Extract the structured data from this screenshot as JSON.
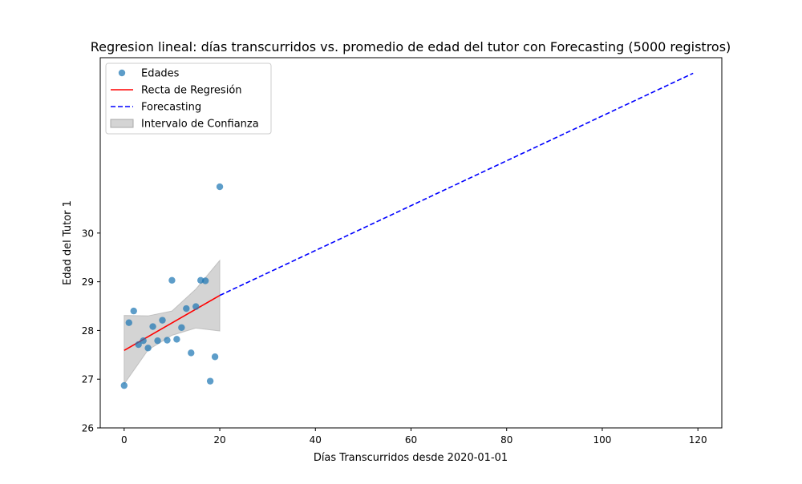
{
  "chart_data": {
    "type": "scatter",
    "title": "Regresion lineal: días transcurridos vs. promedio de edad del tutor con Forecasting (5000 registros)",
    "xlabel": "Días Transcurridos desde 2020-01-01",
    "ylabel": "Edad del Tutor 1",
    "xlim": [
      -5,
      125
    ],
    "ylim": [
      26,
      33.6
    ],
    "xticks": [
      0,
      20,
      40,
      60,
      80,
      100,
      120
    ],
    "yticks": [
      26,
      27,
      28,
      29,
      30
    ],
    "grid": false,
    "legend_position": "upper-left",
    "colors": {
      "scatter": "#1f77b4",
      "regression": "#ff0000",
      "forecast": "#0000ff",
      "interval": "#a9a9a9"
    },
    "legend": [
      {
        "label": "Edades",
        "kind": "scatter"
      },
      {
        "label": "Recta de Regresión",
        "kind": "regression"
      },
      {
        "label": "Forecasting",
        "kind": "forecast"
      },
      {
        "label": "Intervalo de Confianza",
        "kind": "interval"
      }
    ],
    "series": [
      {
        "name": "Edades",
        "kind": "scatter",
        "x": [
          0,
          1,
          2,
          3,
          4,
          5,
          6,
          7,
          8,
          9,
          10,
          11,
          12,
          13,
          14,
          15,
          16,
          17,
          18,
          19,
          20
        ],
        "y": [
          26.87,
          28.16,
          28.4,
          27.71,
          27.79,
          27.64,
          28.08,
          27.79,
          28.21,
          27.8,
          29.03,
          27.82,
          28.06,
          28.45,
          27.54,
          28.49,
          29.03,
          29.02,
          26.96,
          27.46,
          30.95
        ]
      },
      {
        "name": "Recta de Regresión",
        "kind": "line",
        "x": [
          0,
          20
        ],
        "y": [
          27.59,
          28.72
        ]
      },
      {
        "name": "Forecasting",
        "kind": "dashed-line",
        "x": [
          20,
          119
        ],
        "y": [
          28.72,
          33.28
        ]
      },
      {
        "name": "Intervalo de Confianza",
        "kind": "band",
        "x": [
          0,
          5,
          10,
          15,
          20
        ],
        "lower": [
          26.9,
          27.6,
          27.9,
          28.05,
          27.99
        ],
        "upper": [
          28.31,
          28.3,
          28.4,
          28.85,
          29.44
        ]
      }
    ]
  }
}
